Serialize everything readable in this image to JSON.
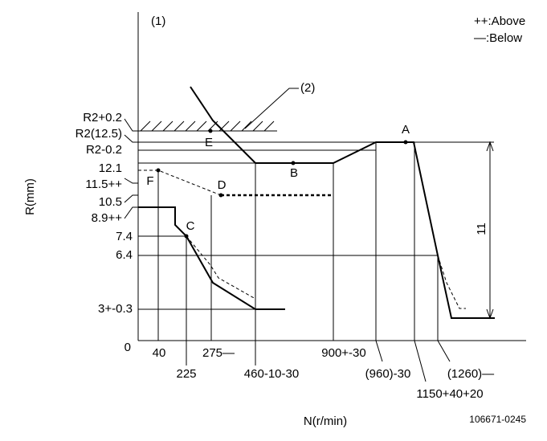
{
  "figure_number": "(1)",
  "legend": [
    "++:Above",
    "—:Below"
  ],
  "callout": "(2)",
  "y_axis_title": "R(mm)",
  "x_axis_title": "N(r/min)",
  "y_labels": [
    "R2+0.2",
    "R2(12.5)",
    "R2-0.2",
    "12.1",
    "11.5++",
    "10.5",
    "8.9++",
    "7.4",
    "6.4",
    "3+-0.3",
    "0"
  ],
  "x_labels": [
    "40",
    "225",
    "275—",
    "460-10-30",
    "900+-30",
    "(960)-30",
    "1150+40+20",
    "(1260)—"
  ],
  "points": [
    "A",
    "B",
    "C",
    "D",
    "E",
    "F"
  ],
  "dimension": "11",
  "drawing_number": "106671-0245"
}
